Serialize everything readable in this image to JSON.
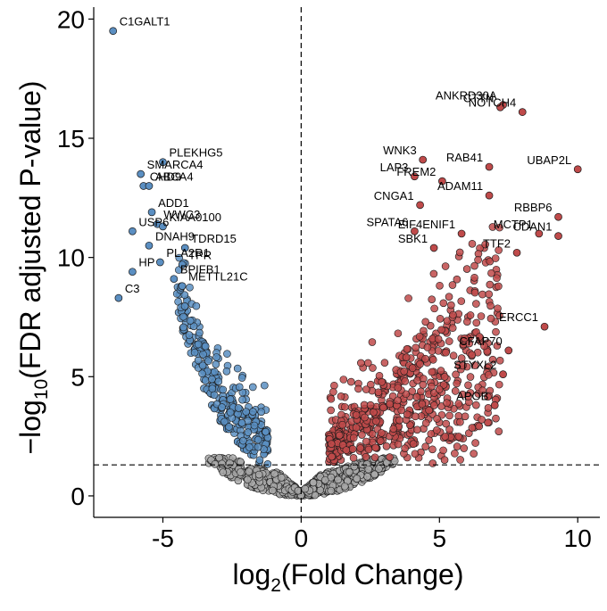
{
  "chart_data": {
    "type": "scatter",
    "title": "",
    "xlabel": {
      "base": "log",
      "sub": "2",
      "rest": "(Fold Change)"
    },
    "ylabel": {
      "prefix": "−log",
      "sub": "10",
      "rest": "(FDR adjusted P-value)"
    },
    "xlim": [
      -7.5,
      10.8
    ],
    "ylim": [
      -0.9,
      20.5
    ],
    "x_ticks": [
      {
        "value": -5,
        "label": "-5"
      },
      {
        "value": 0,
        "label": "0"
      },
      {
        "value": 5,
        "label": "5"
      },
      {
        "value": 10,
        "label": "10"
      }
    ],
    "y_ticks": [
      {
        "value": 0,
        "label": "0"
      },
      {
        "value": 5,
        "label": "5"
      },
      {
        "value": 10,
        "label": "10"
      },
      {
        "value": 15,
        "label": "15"
      },
      {
        "value": 20,
        "label": "20"
      }
    ],
    "thresholds": {
      "fdr_line_y": 1.3,
      "fold_line_x": 0
    },
    "colors": {
      "down": "#5b8fc2",
      "up": "#bf4a4a",
      "ns": "#a9a9a9",
      "outline": "#1a1a1a"
    },
    "grid": false,
    "legend": "none",
    "labeled_points": [
      {
        "gene": "C1GALT1",
        "x": -6.8,
        "y": 19.5,
        "group": "down"
      },
      {
        "gene": "PLEKHG5",
        "x": -5.0,
        "y": 14.0,
        "group": "down"
      },
      {
        "gene": "SMARCA4",
        "x": -5.8,
        "y": 13.5,
        "group": "down"
      },
      {
        "gene": "CHD9",
        "x": -5.7,
        "y": 13.0,
        "group": "down"
      },
      {
        "gene": "ABCA4",
        "x": -5.5,
        "y": 13.0,
        "group": "down"
      },
      {
        "gene": "ADD1",
        "x": -5.4,
        "y": 11.9,
        "group": "down"
      },
      {
        "gene": "WWC3",
        "x": -5.2,
        "y": 11.4,
        "group": "down"
      },
      {
        "gene": "KIAA0100",
        "x": -5.0,
        "y": 11.3,
        "group": "down"
      },
      {
        "gene": "USP6",
        "x": -6.1,
        "y": 11.1,
        "group": "down"
      },
      {
        "gene": "DNAH9",
        "x": -5.5,
        "y": 10.5,
        "group": "down"
      },
      {
        "gene": "TDRD15",
        "x": -4.2,
        "y": 10.4,
        "group": "down"
      },
      {
        "gene": "PLA2R1",
        "x": -5.1,
        "y": 9.8,
        "group": "down"
      },
      {
        "gene": "TPR",
        "x": -4.3,
        "y": 9.7,
        "group": "down"
      },
      {
        "gene": "HP",
        "x": -6.1,
        "y": 9.4,
        "group": "down"
      },
      {
        "gene": "BPIFB1",
        "x": -4.6,
        "y": 9.1,
        "group": "down"
      },
      {
        "gene": "METTL21C",
        "x": -4.3,
        "y": 8.8,
        "group": "down"
      },
      {
        "gene": "C3",
        "x": -6.6,
        "y": 8.3,
        "group": "down"
      },
      {
        "gene": "ANKRD30A",
        "x": 7.3,
        "y": 16.4,
        "group": "up"
      },
      {
        "gene": "CTTN",
        "x": 7.2,
        "y": 16.3,
        "group": "up"
      },
      {
        "gene": "NOTCH4",
        "x": 8.0,
        "y": 16.1,
        "group": "up"
      },
      {
        "gene": "WNK3",
        "x": 4.4,
        "y": 14.1,
        "group": "up"
      },
      {
        "gene": "RAB41",
        "x": 6.8,
        "y": 13.8,
        "group": "up"
      },
      {
        "gene": "UBAP2L",
        "x": 10.0,
        "y": 13.7,
        "group": "up"
      },
      {
        "gene": "LAP3",
        "x": 4.1,
        "y": 13.4,
        "group": "up"
      },
      {
        "gene": "FREM2",
        "x": 5.1,
        "y": 13.2,
        "group": "up"
      },
      {
        "gene": "ADAM11",
        "x": 6.8,
        "y": 12.6,
        "group": "up"
      },
      {
        "gene": "CNGA1",
        "x": 4.3,
        "y": 12.2,
        "group": "up"
      },
      {
        "gene": "RBBP6",
        "x": 9.3,
        "y": 11.7,
        "group": "up"
      },
      {
        "gene": "SPATA6",
        "x": 4.1,
        "y": 11.1,
        "group": "up"
      },
      {
        "gene": "EIF4ENIF1",
        "x": 5.8,
        "y": 11.0,
        "group": "up"
      },
      {
        "gene": "MCTP1",
        "x": 8.6,
        "y": 11.0,
        "group": "up"
      },
      {
        "gene": "SBK1",
        "x": 4.8,
        "y": 10.4,
        "group": "up"
      },
      {
        "gene": "CDAN1",
        "x": 9.3,
        "y": 10.9,
        "group": "up"
      },
      {
        "gene": "TTF2",
        "x": 7.8,
        "y": 10.2,
        "group": "up"
      },
      {
        "gene": "ERCC1",
        "x": 8.8,
        "y": 7.1,
        "group": "up"
      },
      {
        "gene": "CFAP70",
        "x": 7.5,
        "y": 6.1,
        "group": "up"
      },
      {
        "gene": "STYXL2",
        "x": 7.3,
        "y": 5.1,
        "group": "up"
      },
      {
        "gene": "APOB",
        "x": 7.0,
        "y": 3.8,
        "group": "up"
      }
    ]
  }
}
